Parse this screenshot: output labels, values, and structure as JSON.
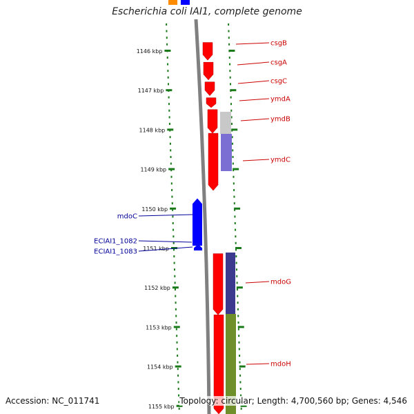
{
  "title": "Escherichia coli IAI1, complete genome",
  "footer": {
    "accession": "Accession: NC_011741",
    "summary": "Topology: circular; Length: 4,700,560 bp; Genes: 4,546"
  },
  "colors": {
    "forward_cds": "#ff0000",
    "reverse_cds": "#0000ff",
    "backbone": "#808080",
    "tick": "#1a7a1a",
    "gene_label_forward": "#cc0000",
    "gene_label_reverse": "#000099",
    "cog_gray": "#c8c8c8",
    "cog_purple": "#7b6fd4",
    "cog_indigo": "#3b3a8f",
    "cog_olive": "#6e8f2a"
  },
  "scale": {
    "ticks": [
      {
        "label": "1146 kbp"
      },
      {
        "label": "1147 kbp"
      },
      {
        "label": "1148 kbp"
      },
      {
        "label": "1149 kbp"
      },
      {
        "label": "1150 kbp"
      },
      {
        "label": "1151 kbp"
      },
      {
        "label": "1152 kbp"
      },
      {
        "label": "1153 kbp"
      },
      {
        "label": "1154 kbp"
      },
      {
        "label": "1155 kbp"
      }
    ]
  },
  "genes": {
    "forward": [
      {
        "label": "csgB",
        "start_kbp": 1145.8,
        "end_kbp": 1146.25
      },
      {
        "label": "csgA",
        "start_kbp": 1146.3,
        "end_kbp": 1146.75
      },
      {
        "label": "csgC",
        "start_kbp": 1146.8,
        "end_kbp": 1147.15
      },
      {
        "label": "ymdA",
        "start_kbp": 1147.2,
        "end_kbp": 1147.45
      },
      {
        "label": "ymdB",
        "start_kbp": 1147.5,
        "end_kbp": 1148.1
      },
      {
        "label": "ymdC",
        "start_kbp": 1148.1,
        "end_kbp": 1149.55
      },
      {
        "label": "mdoG",
        "start_kbp": 1151.15,
        "end_kbp": 1152.7
      },
      {
        "label": "mdoH",
        "start_kbp": 1152.7,
        "end_kbp": 1155.25
      }
    ],
    "reverse": [
      {
        "label": "mdoC",
        "start_kbp": 1149.75,
        "end_kbp": 1150.95
      },
      {
        "label": "ECIAI1_1082",
        "start_kbp": 1151.0,
        "end_kbp": 1151.05
      },
      {
        "label": "ECIAI1_1083",
        "start_kbp": 1151.07,
        "end_kbp": 1151.12
      }
    ]
  }
}
